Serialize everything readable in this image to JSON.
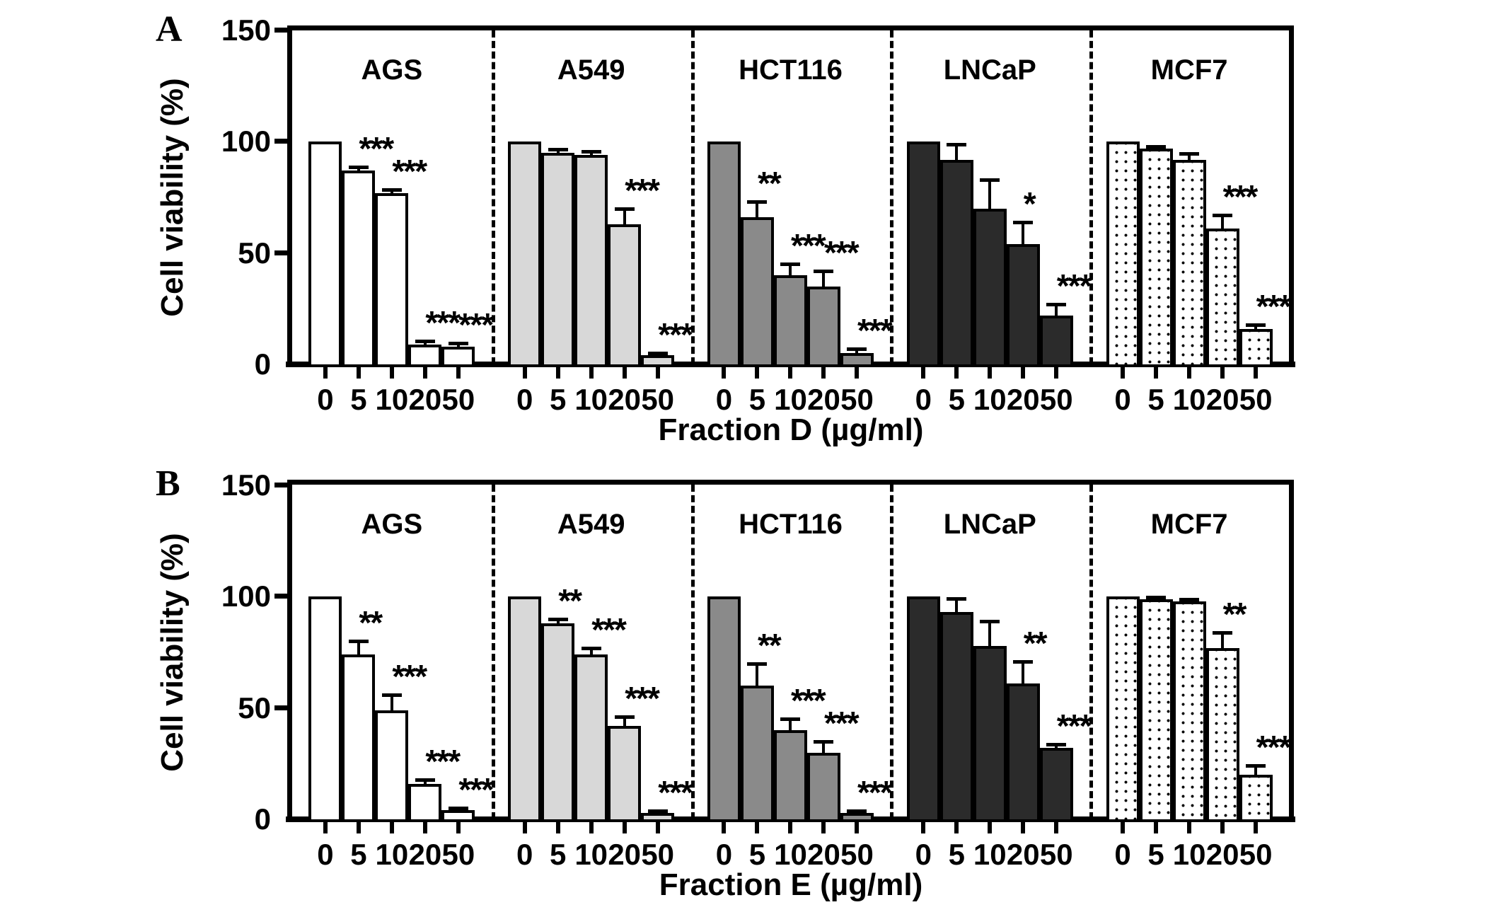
{
  "palette": {
    "white": "#ffffff",
    "lightgray": "#d8d8d8",
    "gray": "#8a8a8a",
    "dark": "#2b2b2b",
    "dot_foreground": "#000000",
    "axis": "#000000"
  },
  "chart_data": [
    {
      "type": "bar",
      "panel": "A",
      "ylabel": "Cell viability (%)",
      "xlabel": "Fraction D (µg/ml)",
      "ylim": [
        0,
        150
      ],
      "yticks": [
        0,
        50,
        100,
        150
      ],
      "doses": [
        "0",
        "5",
        "10",
        "20",
        "50"
      ],
      "legend_position": "none",
      "grid": false,
      "groups": [
        {
          "name": "AGS",
          "fill": "white",
          "values": [
            100,
            87,
            77,
            9,
            8
          ],
          "errors": [
            0,
            1.5,
            1.5,
            1.5,
            1.5
          ],
          "sig": [
            "",
            "***",
            "***",
            "***",
            "***"
          ]
        },
        {
          "name": "A549",
          "fill": "lightgray",
          "values": [
            100,
            95,
            94,
            63,
            4
          ],
          "errors": [
            0,
            1.5,
            1.5,
            7,
            1
          ],
          "sig": [
            "",
            "",
            "",
            "***",
            "***"
          ]
        },
        {
          "name": "HCT116",
          "fill": "gray",
          "values": [
            100,
            66,
            40,
            35,
            5
          ],
          "errors": [
            0,
            7,
            5,
            7,
            2
          ],
          "sig": [
            "",
            "**",
            "***",
            "***",
            "***"
          ]
        },
        {
          "name": "LNCaP",
          "fill": "dark",
          "values": [
            100,
            92,
            70,
            54,
            22
          ],
          "errors": [
            0,
            7,
            13,
            10,
            5
          ],
          "sig": [
            "",
            "",
            "",
            "*",
            "***"
          ]
        },
        {
          "name": "MCF7",
          "fill": "dotted",
          "values": [
            100,
            97,
            92,
            61,
            16
          ],
          "errors": [
            0,
            1,
            3,
            6,
            2
          ],
          "sig": [
            "",
            "",
            "",
            "***",
            "***"
          ]
        }
      ]
    },
    {
      "type": "bar",
      "panel": "B",
      "ylabel": "Cell viability (%)",
      "xlabel": "Fraction E (µg/ml)",
      "ylim": [
        0,
        150
      ],
      "yticks": [
        0,
        50,
        100,
        150
      ],
      "doses": [
        "0",
        "5",
        "10",
        "20",
        "50"
      ],
      "legend_position": "none",
      "grid": false,
      "groups": [
        {
          "name": "AGS",
          "fill": "white",
          "values": [
            100,
            74,
            49,
            16,
            4
          ],
          "errors": [
            0,
            6,
            7,
            2,
            1
          ],
          "sig": [
            "",
            "**",
            "***",
            "***",
            "***"
          ]
        },
        {
          "name": "A549",
          "fill": "lightgray",
          "values": [
            100,
            88,
            74,
            42,
            3
          ],
          "errors": [
            0,
            2,
            3,
            4,
            1
          ],
          "sig": [
            "",
            "**",
            "***",
            "***",
            "***"
          ]
        },
        {
          "name": "HCT116",
          "fill": "gray",
          "values": [
            100,
            60,
            40,
            30,
            3
          ],
          "errors": [
            0,
            10,
            5,
            5,
            1
          ],
          "sig": [
            "",
            "**",
            "***",
            "***",
            "***"
          ]
        },
        {
          "name": "LNCaP",
          "fill": "dark",
          "values": [
            100,
            93,
            78,
            61,
            32
          ],
          "errors": [
            0,
            6,
            11,
            10,
            1.5
          ],
          "sig": [
            "",
            "",
            "",
            "**",
            "***"
          ]
        },
        {
          "name": "MCF7",
          "fill": "dotted",
          "values": [
            100,
            99,
            98,
            77,
            20
          ],
          "errors": [
            0,
            1,
            1,
            7,
            4
          ],
          "sig": [
            "",
            "",
            "",
            "**",
            "***"
          ]
        }
      ]
    }
  ]
}
